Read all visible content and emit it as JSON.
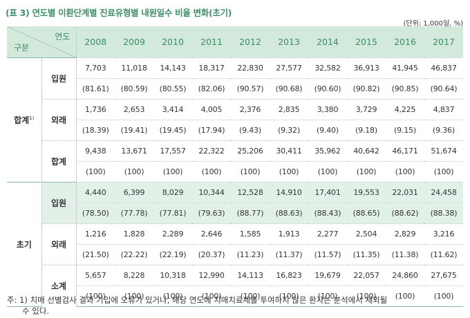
{
  "title": "(표 3) 연도별 이환단계별 진료유형별 내원일수 비율 변화(초기)",
  "unit": "(단위: 1,000일, %)",
  "header": {
    "corner_year": "연도",
    "corner_category": "구분",
    "years": [
      "2008",
      "2009",
      "2010",
      "2011",
      "2012",
      "2013",
      "2014",
      "2015",
      "2016",
      "2017"
    ]
  },
  "groups": [
    {
      "label": "합계",
      "sup": "1)",
      "rows": [
        {
          "label": "입원",
          "values": [
            "7,703",
            "11,018",
            "14,143",
            "18,317",
            "22,830",
            "27,577",
            "32,582",
            "36,913",
            "41,945",
            "46,837"
          ],
          "pcts": [
            "(81.61)",
            "(80.59)",
            "(80.55)",
            "(82.06)",
            "(90.57)",
            "(90.68)",
            "(90.60)",
            "(90.82)",
            "(90.85)",
            "(90.64)"
          ]
        },
        {
          "label": "외래",
          "values": [
            "1,736",
            "2,653",
            "3,414",
            "4,005",
            "2,376",
            "2,835",
            "3,380",
            "3,729",
            "4,225",
            "4,837"
          ],
          "pcts": [
            "(18.39)",
            "(19.41)",
            "(19.45)",
            "(17.94)",
            "(9.43)",
            "(9.32)",
            "(9.40)",
            "(9.18)",
            "(9.15)",
            "(9.36)"
          ]
        },
        {
          "label": "합계",
          "values": [
            "9,438",
            "13,671",
            "17,557",
            "22,322",
            "25,206",
            "30,411",
            "35,962",
            "40,642",
            "46,171",
            "51,674"
          ],
          "pcts": [
            "(100)",
            "(100)",
            "(100)",
            "(100)",
            "(100)",
            "(100)",
            "(100)",
            "(100)",
            "(100)",
            "(100)"
          ]
        }
      ]
    },
    {
      "label": "초기",
      "sup": "",
      "rows": [
        {
          "label": "입원",
          "values": [
            "4,440",
            "6,399",
            "8,029",
            "10,344",
            "12,528",
            "14,910",
            "17,401",
            "19,553",
            "22,031",
            "24,458"
          ],
          "pcts": [
            "(78.50)",
            "(77.78)",
            "(77.81)",
            "(79.63)",
            "(88.77)",
            "(88.63)",
            "(88.43)",
            "(88.65)",
            "(88.62)",
            "(88.38)"
          ]
        },
        {
          "label": "외래",
          "values": [
            "1,216",
            "1,828",
            "2,289",
            "2,646",
            "1,585",
            "1,913",
            "2,277",
            "2,504",
            "2,829",
            "3,216"
          ],
          "pcts": [
            "(21.50)",
            "(22.22)",
            "(22.19)",
            "(20.37)",
            "(11.23)",
            "(11.37)",
            "(11.57)",
            "(11.35)",
            "(11.38)",
            "(11.62)"
          ]
        },
        {
          "label": "소계",
          "values": [
            "5,657",
            "8,228",
            "10,318",
            "12,990",
            "14,113",
            "16,823",
            "19,679",
            "22,057",
            "24,860",
            "27,675"
          ],
          "pcts": [
            "(100)",
            "(100)",
            "(100)",
            "(100)",
            "(100)",
            "(100)",
            "(100)",
            "(100)",
            "(100)",
            "(100)"
          ]
        }
      ]
    }
  ],
  "note": {
    "line1": "주: 1) 치매 선별검사 결과 기입에 오류가 있거나, 해당 연도에 치매치료제를 투여하지 않은 환자는 분석에서 제외될",
    "line2": "수 있다."
  },
  "colors": {
    "title": "#3f8f6a",
    "header_bg": "#d3e9dc",
    "highlight_bg": "#e2f1e8",
    "header_text": "#3a8c65"
  }
}
